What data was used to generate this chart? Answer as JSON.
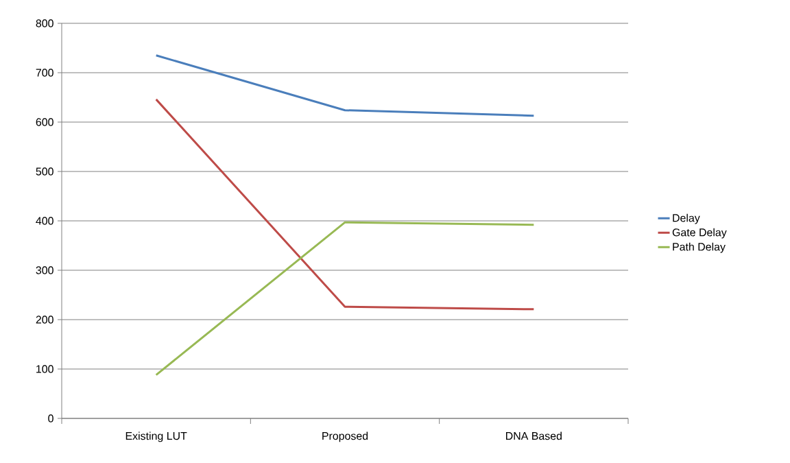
{
  "chart_data": {
    "type": "line",
    "categories": [
      "Existing LUT",
      "Proposed",
      "DNA Based"
    ],
    "series": [
      {
        "name": "Delay",
        "color": "#4a7ebb",
        "values": [
          735,
          624,
          613
        ]
      },
      {
        "name": "Gate Delay",
        "color": "#be4b48",
        "values": [
          646,
          226,
          221
        ]
      },
      {
        "name": "Path Delay",
        "color": "#98b954",
        "values": [
          88,
          397,
          392
        ]
      }
    ],
    "ylim": [
      0,
      800
    ],
    "yticks": [
      0,
      100,
      200,
      300,
      400,
      500,
      600,
      700,
      800
    ],
    "grid": "y",
    "legend": "right",
    "marker": "none",
    "line_style": "solid"
  }
}
